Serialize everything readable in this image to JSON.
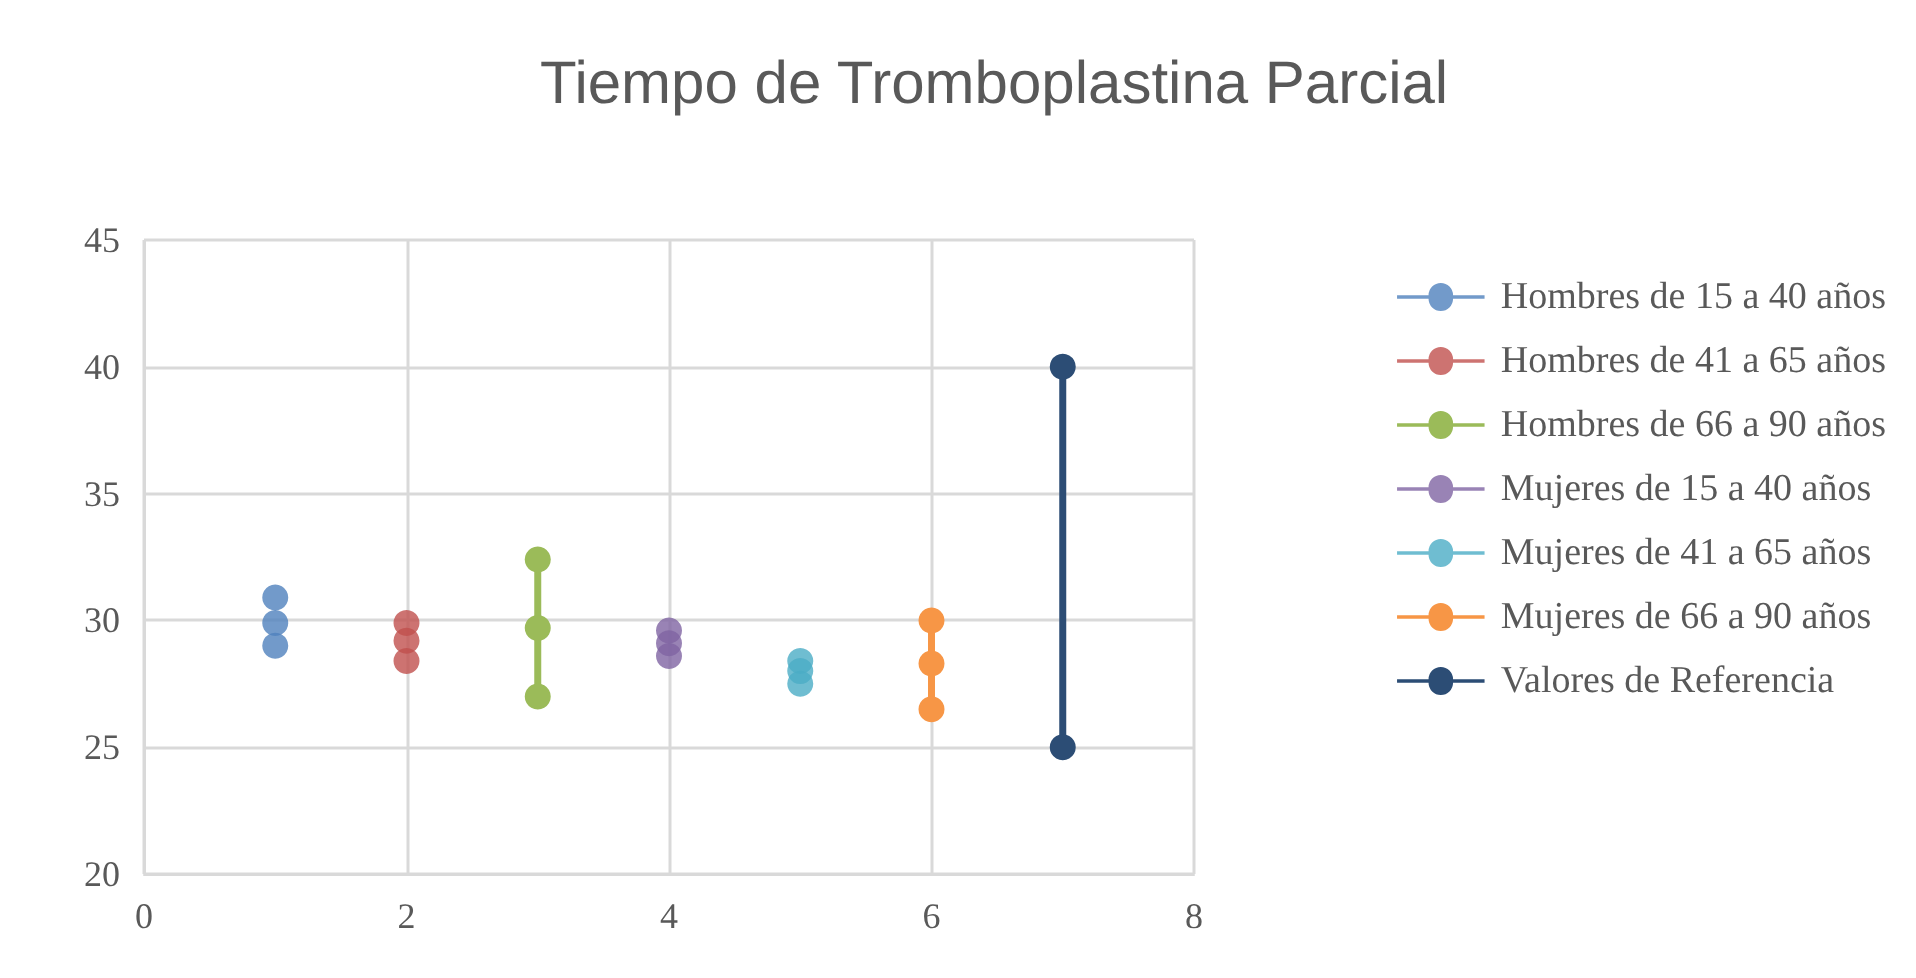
{
  "chart_data": {
    "type": "line",
    "title": "Tiempo de Tromboplastina Parcial",
    "xlim": [
      0,
      8
    ],
    "xticks": [
      0,
      2,
      4,
      6,
      8
    ],
    "ylim": [
      20,
      45
    ],
    "yticks": [
      20,
      25,
      30,
      35,
      40,
      45
    ],
    "grid": true,
    "legend": "right",
    "marker": "circle",
    "line_style": "solid",
    "series": [
      {
        "name": "Hombres de 15 a 40 años",
        "type": "scatter",
        "color": "#4f81bd",
        "x": [
          1,
          1,
          1
        ],
        "values": [
          30.9,
          29.9,
          29.0
        ]
      },
      {
        "name": "Hombres de 41 a 65 años",
        "type": "scatter",
        "color": "#c0504d",
        "x": [
          2,
          2,
          2
        ],
        "values": [
          29.9,
          29.2,
          28.4
        ]
      },
      {
        "name": "Hombres de 66 a 90 años",
        "color": "#9bbb59",
        "x": [
          3,
          3,
          3
        ],
        "values": [
          32.4,
          29.7,
          27.0
        ]
      },
      {
        "name": "Mujeres de 15 a 40 años",
        "type": "scatter",
        "color": "#8064a2",
        "x": [
          4,
          4,
          4
        ],
        "values": [
          29.6,
          29.1,
          28.6
        ]
      },
      {
        "name": "Mujeres de 41 a 65 años",
        "type": "scatter",
        "color": "#4bacc6",
        "x": [
          5,
          5,
          5
        ],
        "values": [
          28.4,
          28.0,
          27.5
        ]
      },
      {
        "name": "Mujeres de 66 a 90 años",
        "color": "#f79646",
        "x": [
          6,
          6,
          6
        ],
        "values": [
          30.0,
          28.3,
          26.5
        ]
      },
      {
        "name": "Valores de Referencia",
        "color": "#2c4d75",
        "x": [
          7,
          7
        ],
        "values": [
          40,
          25
        ]
      }
    ]
  }
}
